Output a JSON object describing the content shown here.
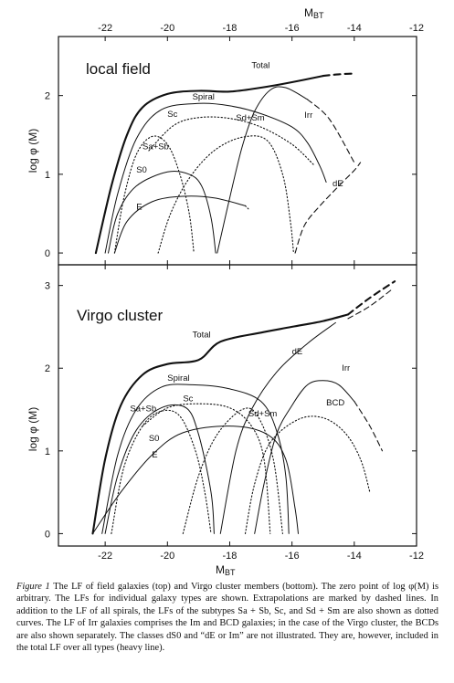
{
  "chart_data": [
    {
      "type": "line",
      "title": "local field",
      "xlabel_top": "M",
      "xlabel_top_sub": "BT",
      "ylabel": "log φ (M)",
      "xlim": [
        -23.5,
        -12
      ],
      "ylim": [
        -0.15,
        2.75
      ],
      "x_axis_reversed": false,
      "xticks": [
        -22,
        -20,
        -18,
        -16,
        -14,
        -12
      ],
      "yticks": [
        0,
        1,
        2
      ],
      "series": [
        {
          "name": "Total",
          "style": "heavy-solid",
          "points": [
            [
              -22.3,
              0.0
            ],
            [
              -21.8,
              0.85
            ],
            [
              -21.3,
              1.5
            ],
            [
              -20.8,
              1.85
            ],
            [
              -20.0,
              2.02
            ],
            [
              -19.0,
              2.06
            ],
            [
              -18.0,
              2.05
            ],
            [
              -17.0,
              2.1
            ],
            [
              -16.0,
              2.17
            ],
            [
              -15.0,
              2.25
            ]
          ]
        },
        {
          "name": "",
          "style": "heavy-dashed",
          "points": [
            [
              -15.0,
              2.25
            ],
            [
              -14.5,
              2.27
            ],
            [
              -14.0,
              2.28
            ]
          ]
        },
        {
          "name": "Spiral",
          "style": "solid",
          "points": [
            [
              -22.0,
              0.0
            ],
            [
              -21.6,
              0.75
            ],
            [
              -21.0,
              1.45
            ],
            [
              -20.2,
              1.82
            ],
            [
              -19.0,
              1.9
            ],
            [
              -18.0,
              1.87
            ],
            [
              -17.0,
              1.77
            ],
            [
              -16.0,
              1.6
            ],
            [
              -15.5,
              1.4
            ],
            [
              -15.1,
              1.1
            ],
            [
              -14.9,
              0.9
            ]
          ]
        },
        {
          "name": "Sc",
          "style": "dotted",
          "points": [
            [
              -20.6,
              1.3
            ],
            [
              -19.8,
              1.62
            ],
            [
              -19.0,
              1.72
            ],
            [
              -18.0,
              1.71
            ],
            [
              -17.0,
              1.6
            ],
            [
              -16.0,
              1.38
            ],
            [
              -15.3,
              1.12
            ]
          ]
        },
        {
          "name": "Sd+Sm",
          "style": "dotted",
          "points": [
            [
              -20.3,
              0.0
            ],
            [
              -19.9,
              0.5
            ],
            [
              -19.3,
              0.95
            ],
            [
              -18.5,
              1.3
            ],
            [
              -17.6,
              1.47
            ],
            [
              -16.8,
              1.43
            ],
            [
              -16.3,
              1.0
            ],
            [
              -16.05,
              0.4
            ],
            [
              -15.95,
              0.0
            ]
          ]
        },
        {
          "name": "Sa+Sb",
          "style": "dotted",
          "points": [
            [
              -21.7,
              0.0
            ],
            [
              -21.4,
              0.7
            ],
            [
              -21.0,
              1.25
            ],
            [
              -20.5,
              1.48
            ],
            [
              -20.0,
              1.38
            ],
            [
              -19.6,
              1.0
            ],
            [
              -19.3,
              0.5
            ],
            [
              -19.15,
              0.0
            ]
          ]
        },
        {
          "name": "S0",
          "style": "solid",
          "points": [
            [
              -21.9,
              0.0
            ],
            [
              -21.6,
              0.5
            ],
            [
              -21.0,
              0.85
            ],
            [
              -20.0,
              1.03
            ],
            [
              -19.3,
              1.0
            ],
            [
              -18.9,
              0.85
            ],
            [
              -18.6,
              0.45
            ],
            [
              -18.45,
              0.0
            ]
          ]
        },
        {
          "name": "E",
          "style": "solid",
          "points": [
            [
              -21.7,
              0.0
            ],
            [
              -21.3,
              0.4
            ],
            [
              -20.5,
              0.65
            ],
            [
              -19.5,
              0.72
            ],
            [
              -18.5,
              0.7
            ],
            [
              -17.5,
              0.6
            ]
          ]
        },
        {
          "name": "",
          "style": "dotted",
          "points": [
            [
              -17.5,
              0.6
            ],
            [
              -17.4,
              0.56
            ]
          ]
        },
        {
          "name": "Irr",
          "style": "solid",
          "points": [
            [
              -18.4,
              0.0
            ],
            [
              -18.0,
              0.7
            ],
            [
              -17.6,
              1.35
            ],
            [
              -17.2,
              1.8
            ],
            [
              -16.7,
              2.07
            ],
            [
              -16.2,
              2.1
            ],
            [
              -15.5,
              1.95
            ]
          ]
        },
        {
          "name": "",
          "style": "dashed",
          "points": [
            [
              -15.5,
              1.95
            ],
            [
              -14.8,
              1.7
            ],
            [
              -14.0,
              1.15
            ]
          ]
        },
        {
          "name": "dE",
          "style": "dashed",
          "points": [
            [
              -15.9,
              0.0
            ],
            [
              -15.6,
              0.35
            ],
            [
              -15.1,
              0.6
            ],
            [
              -14.5,
              0.85
            ],
            [
              -14.0,
              1.05
            ],
            [
              -13.8,
              1.15
            ]
          ]
        }
      ]
    },
    {
      "type": "line",
      "title": "Virgo cluster",
      "xlabel": "M",
      "xlabel_sub": "BT",
      "ylabel": "log φ (M)",
      "xlim": [
        -23.5,
        -12
      ],
      "ylim": [
        -0.15,
        3.25
      ],
      "xticks": [
        -22,
        -20,
        -18,
        -16,
        -14,
        -12
      ],
      "yticks": [
        0,
        1,
        2,
        3
      ],
      "series": [
        {
          "name": "Total",
          "style": "heavy-solid",
          "points": [
            [
              -22.4,
              0.0
            ],
            [
              -22.0,
              0.9
            ],
            [
              -21.5,
              1.55
            ],
            [
              -20.8,
              1.92
            ],
            [
              -20.0,
              2.05
            ],
            [
              -19.0,
              2.1
            ],
            [
              -18.3,
              2.32
            ],
            [
              -17.0,
              2.43
            ],
            [
              -16.0,
              2.5
            ],
            [
              -15.0,
              2.57
            ],
            [
              -14.2,
              2.65
            ]
          ]
        },
        {
          "name": "",
          "style": "heavy-dashed",
          "points": [
            [
              -14.2,
              2.65
            ],
            [
              -13.5,
              2.85
            ],
            [
              -12.7,
              3.05
            ]
          ]
        },
        {
          "name": "",
          "style": "dashed",
          "points": [
            [
              -14.2,
              2.6
            ],
            [
              -13.5,
              2.75
            ],
            [
              -12.8,
              2.95
            ]
          ]
        },
        {
          "name": "Spiral",
          "style": "solid",
          "points": [
            [
              -22.1,
              0.0
            ],
            [
              -21.6,
              0.95
            ],
            [
              -21.0,
              1.5
            ],
            [
              -20.2,
              1.77
            ],
            [
              -19.2,
              1.8
            ],
            [
              -18.0,
              1.75
            ],
            [
              -17.0,
              1.6
            ],
            [
              -16.5,
              1.25
            ],
            [
              -16.2,
              0.7
            ],
            [
              -16.1,
              0.0
            ]
          ]
        },
        {
          "name": "Sc",
          "style": "dotted",
          "points": [
            [
              -20.8,
              1.3
            ],
            [
              -20.0,
              1.52
            ],
            [
              -19.0,
              1.57
            ],
            [
              -18.0,
              1.52
            ],
            [
              -17.3,
              1.3
            ],
            [
              -16.9,
              0.9
            ],
            [
              -16.7,
              0.0
            ]
          ]
        },
        {
          "name": "Sa+Sb",
          "style": "dotted",
          "points": [
            [
              -21.8,
              0.0
            ],
            [
              -21.4,
              0.8
            ],
            [
              -20.8,
              1.3
            ],
            [
              -20.2,
              1.48
            ],
            [
              -19.6,
              1.42
            ],
            [
              -19.1,
              1.0
            ],
            [
              -18.8,
              0.5
            ],
            [
              -18.6,
              0.0
            ]
          ]
        },
        {
          "name": "S0",
          "style": "solid",
          "points": [
            [
              -22.0,
              0.0
            ],
            [
              -21.6,
              0.7
            ],
            [
              -21.0,
              1.25
            ],
            [
              -20.2,
              1.52
            ],
            [
              -19.4,
              1.52
            ],
            [
              -19.0,
              1.2
            ],
            [
              -18.6,
              0.5
            ],
            [
              -18.5,
              0.0
            ]
          ]
        },
        {
          "name": "E",
          "style": "solid",
          "points": [
            [
              -22.4,
              0.0
            ],
            [
              -21.5,
              0.5
            ],
            [
              -20.5,
              0.95
            ],
            [
              -19.5,
              1.22
            ],
            [
              -18.0,
              1.3
            ],
            [
              -16.8,
              1.2
            ],
            [
              -16.2,
              0.9
            ],
            [
              -15.9,
              0.3
            ],
            [
              -15.8,
              0.0
            ]
          ]
        },
        {
          "name": "Sd+Sm",
          "style": "dotted",
          "points": [
            [
              -19.5,
              0.0
            ],
            [
              -19.0,
              0.7
            ],
            [
              -18.4,
              1.2
            ],
            [
              -17.6,
              1.5
            ],
            [
              -17.1,
              1.42
            ],
            [
              -16.6,
              0.9
            ],
            [
              -16.3,
              0.0
            ]
          ]
        },
        {
          "name": "dE",
          "style": "solid",
          "points": [
            [
              -18.3,
              0.0
            ],
            [
              -17.8,
              1.0
            ],
            [
              -17.3,
              1.5
            ],
            [
              -16.5,
              1.95
            ],
            [
              -15.5,
              2.3
            ],
            [
              -14.6,
              2.55
            ]
          ]
        },
        {
          "name": "Irr",
          "style": "solid",
          "points": [
            [
              -17.2,
              0.0
            ],
            [
              -16.9,
              0.6
            ],
            [
              -16.5,
              1.2
            ],
            [
              -16.0,
              1.55
            ],
            [
              -15.5,
              1.8
            ],
            [
              -15.0,
              1.85
            ],
            [
              -14.5,
              1.8
            ],
            [
              -14.0,
              1.6
            ]
          ]
        },
        {
          "name": "",
          "style": "dashed",
          "points": [
            [
              -14.0,
              1.6
            ],
            [
              -13.5,
              1.3
            ],
            [
              -13.1,
              1.0
            ]
          ]
        },
        {
          "name": "BCD",
          "style": "dotted",
          "points": [
            [
              -17.5,
              0.0
            ],
            [
              -17.2,
              0.6
            ],
            [
              -16.7,
              1.1
            ],
            [
              -15.8,
              1.38
            ],
            [
              -15.0,
              1.4
            ],
            [
              -14.3,
              1.22
            ],
            [
              -13.8,
              0.9
            ],
            [
              -13.5,
              0.5
            ]
          ]
        }
      ]
    }
  ],
  "caption": {
    "lead": "Figure 1",
    "text": "The LF of field galaxies (top) and Virgo cluster members (bottom). The zero point of log φ(M) is arbitrary. The LFs for individual galaxy types are shown. Extrapolations are marked by dashed lines. In addition to the LF of all spirals, the LFs of the subtypes Sa + Sb, Sc, and Sd + Sm are also shown as dotted curves. The LF of Irr galaxies comprises the Im and BCD galaxies; in the case of the Virgo cluster, the BCDs are also shown separately. The classes dS0 and “dE or Im” are not illustrated. They are, however, included in the total LF over all types (heavy line)."
  }
}
